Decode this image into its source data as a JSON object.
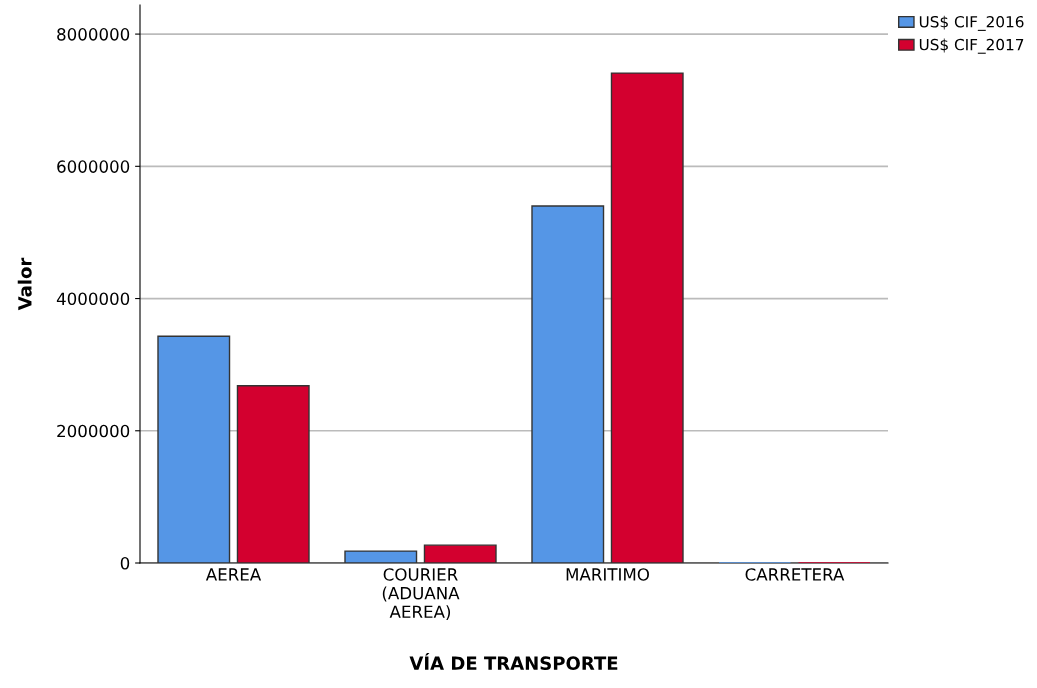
{
  "chart_data": {
    "type": "bar",
    "xlabel": "VÍA DE TRANSPORTE",
    "ylabel": "Valor",
    "categories": [
      "AEREA",
      "COURIER\n(ADUANA\nAEREA)",
      "MARITIMO",
      "CARRETERA"
    ],
    "series": [
      {
        "name": "US$ CIF_2016",
        "color": "#5596e6",
        "values": [
          3430000,
          180000,
          5400000,
          0
        ]
      },
      {
        "name": "US$ CIF_2017",
        "color": "#d3002f",
        "values": [
          2680000,
          270000,
          7410000,
          0
        ]
      }
    ],
    "ylim": [
      0,
      8440000
    ],
    "yticks": [
      0,
      2000000,
      4000000,
      6000000,
      8000000
    ],
    "grid": "y",
    "legend": "top right"
  }
}
